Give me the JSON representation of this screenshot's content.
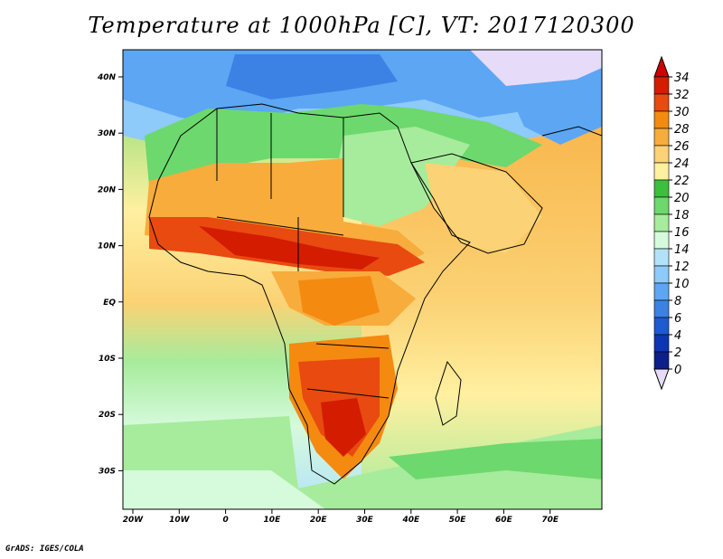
{
  "title": "Temperature at 1000hPa [C], VT: 2017120300",
  "footer": "GrADS: IGES/COLA",
  "map": {
    "lon_labels": [
      "20W",
      "10W",
      "0",
      "10E",
      "20E",
      "30E",
      "40E",
      "50E",
      "60E",
      "70E"
    ],
    "lat_labels": [
      "40N",
      "30N",
      "20N",
      "10N",
      "EQ",
      "10S",
      "20S",
      "30S"
    ]
  },
  "colorbar": {
    "labels": [
      "34",
      "32",
      "30",
      "28",
      "26",
      "24",
      "22",
      "20",
      "18",
      "16",
      "14",
      "12",
      "10",
      "8",
      "6",
      "4",
      "2",
      "0"
    ],
    "colors": [
      "#d41c00",
      "#e84a10",
      "#f58a10",
      "#f7ac3c",
      "#fbd275",
      "#fff0a0",
      "#3cbf3c",
      "#6dd86d",
      "#a6ec9c",
      "#d6fadc",
      "#b2e2fa",
      "#8ecafa",
      "#5ca6f4",
      "#3c82e4",
      "#1e5ad2",
      "#0e36b4",
      "#0c1f8a"
    ],
    "over_color": "#d00000",
    "under_color": "#e6dcfa"
  }
}
